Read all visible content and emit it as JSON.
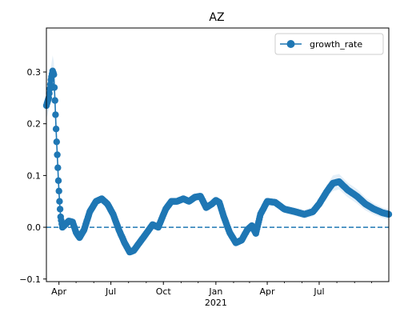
{
  "chart_data": {
    "type": "line",
    "title": "AZ",
    "xlabel": "",
    "ylabel": "",
    "x_range": [
      "2020-03-10",
      "2021-10-31"
    ],
    "ylim": [
      -0.105,
      0.385
    ],
    "zero_line": {
      "y": 0,
      "style": "dashed",
      "color": "#1f77b4"
    },
    "grid": false,
    "legend": {
      "position": "top-right",
      "entries": [
        "growth_rate"
      ]
    },
    "x_tick_labels": [
      {
        "date": "2020-04-01",
        "label": "Apr"
      },
      {
        "date": "2020-07-01",
        "label": "Jul"
      },
      {
        "date": "2020-10-01",
        "label": "Oct"
      },
      {
        "date": "2021-01-01",
        "label": "Jan"
      },
      {
        "date": "2021-04-01",
        "label": "Apr"
      },
      {
        "date": "2021-07-01",
        "label": "Jul"
      }
    ],
    "x_secondary_label": {
      "date": "2021-01-01",
      "label": "2021"
    },
    "x_minor_ticks": [
      "2020-05-01",
      "2020-06-01",
      "2020-08-01",
      "2020-09-01",
      "2020-11-01",
      "2020-12-01",
      "2021-02-01",
      "2021-03-01",
      "2021-05-01",
      "2021-06-01",
      "2021-08-01",
      "2021-09-01",
      "2021-10-01"
    ],
    "y_ticks": [
      -0.1,
      0.0,
      0.1,
      0.2,
      0.3
    ],
    "y_tick_labels": [
      "−0.1",
      "0.0",
      "0.1",
      "0.2",
      "0.3"
    ],
    "series": [
      {
        "name": "growth_rate",
        "color": "#1f77b4",
        "band_color": "#dbe9f6",
        "keypoints": [
          [
            "2020-03-10",
            0.235,
            0.05
          ],
          [
            "2020-03-14",
            0.25,
            0.05
          ],
          [
            "2020-03-18",
            0.285,
            0.05
          ],
          [
            "2020-03-21",
            0.302,
            0.06
          ],
          [
            "2020-03-23",
            0.295,
            0.05
          ],
          [
            "2020-03-25",
            0.245,
            0.04
          ],
          [
            "2020-03-27",
            0.19,
            0.035
          ],
          [
            "2020-03-29",
            0.14,
            0.03
          ],
          [
            "2020-03-31",
            0.09,
            0.025
          ],
          [
            "2020-04-02",
            0.05,
            0.02
          ],
          [
            "2020-04-04",
            0.02,
            0.015
          ],
          [
            "2020-04-07",
            0.0,
            0.012
          ],
          [
            "2020-04-12",
            0.005,
            0.012
          ],
          [
            "2020-04-18",
            0.012,
            0.012
          ],
          [
            "2020-04-25",
            0.01,
            0.012
          ],
          [
            "2020-05-01",
            -0.01,
            0.012
          ],
          [
            "2020-05-07",
            -0.02,
            0.012
          ],
          [
            "2020-05-15",
            -0.005,
            0.012
          ],
          [
            "2020-05-25",
            0.03,
            0.013
          ],
          [
            "2020-06-05",
            0.05,
            0.013
          ],
          [
            "2020-06-15",
            0.055,
            0.013
          ],
          [
            "2020-06-25",
            0.045,
            0.013
          ],
          [
            "2020-07-05",
            0.025,
            0.013
          ],
          [
            "2020-07-15",
            -0.005,
            0.013
          ],
          [
            "2020-07-25",
            -0.03,
            0.013
          ],
          [
            "2020-08-03",
            -0.048,
            0.013
          ],
          [
            "2020-08-10",
            -0.045,
            0.013
          ],
          [
            "2020-08-20",
            -0.03,
            0.013
          ],
          [
            "2020-09-01",
            -0.012,
            0.013
          ],
          [
            "2020-09-12",
            0.005,
            0.013
          ],
          [
            "2020-09-22",
            0.0,
            0.013
          ],
          [
            "2020-10-05",
            0.035,
            0.013
          ],
          [
            "2020-10-15",
            0.05,
            0.013
          ],
          [
            "2020-10-25",
            0.05,
            0.013
          ],
          [
            "2020-11-05",
            0.055,
            0.013
          ],
          [
            "2020-11-15",
            0.05,
            0.013
          ],
          [
            "2020-11-25",
            0.058,
            0.013
          ],
          [
            "2020-12-05",
            0.06,
            0.013
          ],
          [
            "2020-12-15",
            0.038,
            0.013
          ],
          [
            "2020-12-25",
            0.045,
            0.013
          ],
          [
            "2021-01-01",
            0.052,
            0.013
          ],
          [
            "2021-01-07",
            0.048,
            0.013
          ],
          [
            "2021-01-15",
            0.02,
            0.013
          ],
          [
            "2021-01-25",
            -0.01,
            0.013
          ],
          [
            "2021-02-05",
            -0.03,
            0.013
          ],
          [
            "2021-02-15",
            -0.025,
            0.013
          ],
          [
            "2021-02-25",
            -0.005,
            0.013
          ],
          [
            "2021-03-05",
            0.003,
            0.013
          ],
          [
            "2021-03-12",
            -0.012,
            0.013
          ],
          [
            "2021-03-20",
            0.025,
            0.013
          ],
          [
            "2021-04-01",
            0.05,
            0.013
          ],
          [
            "2021-04-15",
            0.048,
            0.014
          ],
          [
            "2021-05-01",
            0.035,
            0.015
          ],
          [
            "2021-05-20",
            0.03,
            0.016
          ],
          [
            "2021-06-05",
            0.025,
            0.017
          ],
          [
            "2021-06-20",
            0.03,
            0.018
          ],
          [
            "2021-07-01",
            0.045,
            0.02
          ],
          [
            "2021-07-15",
            0.07,
            0.025
          ],
          [
            "2021-07-25",
            0.085,
            0.03
          ],
          [
            "2021-08-05",
            0.088,
            0.03
          ],
          [
            "2021-08-20",
            0.072,
            0.028
          ],
          [
            "2021-09-05",
            0.06,
            0.028
          ],
          [
            "2021-09-20",
            0.045,
            0.025
          ],
          [
            "2021-10-05",
            0.035,
            0.022
          ],
          [
            "2021-10-20",
            0.028,
            0.02
          ],
          [
            "2021-10-31",
            0.025,
            0.02
          ]
        ]
      }
    ]
  }
}
